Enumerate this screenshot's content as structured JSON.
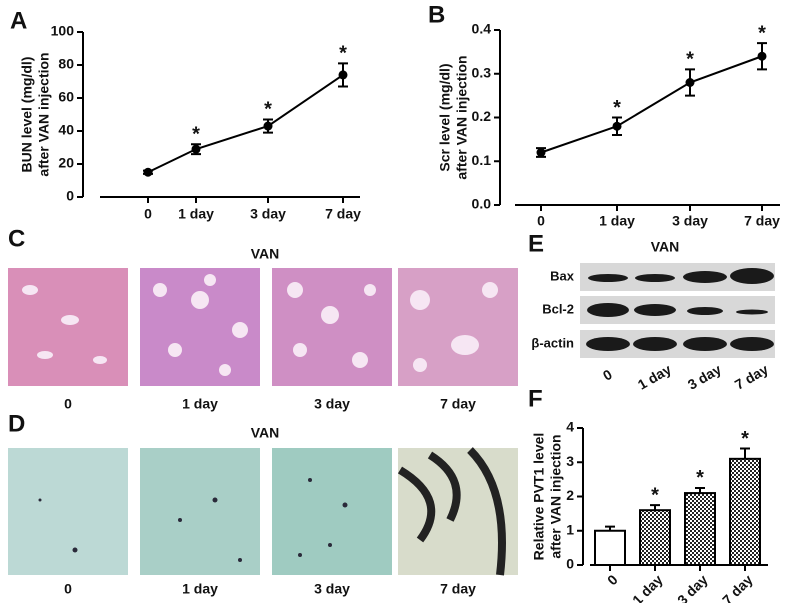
{
  "chart_data": [
    {
      "type": "line",
      "panel": "A",
      "ylabel": [
        "BUN level (mg/dl)",
        "after VAN injection"
      ],
      "categories": [
        "0",
        "1 day",
        "3 day",
        "7 day"
      ],
      "values": [
        15,
        29,
        43,
        74
      ],
      "error": [
        1,
        3,
        4,
        7
      ],
      "significance": [
        null,
        "*",
        "*",
        "*"
      ],
      "color": "#000000",
      "ylim": [
        0,
        100
      ],
      "yticks": [
        0,
        20,
        40,
        60,
        80,
        100
      ]
    },
    {
      "type": "line",
      "panel": "B",
      "ylabel": [
        "Scr level (mg/dl)",
        "after VAN injection"
      ],
      "categories": [
        "0",
        "1 day",
        "3 day",
        "7 day"
      ],
      "values": [
        0.12,
        0.18,
        0.28,
        0.34
      ],
      "error": [
        0.01,
        0.02,
        0.03,
        0.03
      ],
      "significance": [
        null,
        "*",
        "*",
        "*"
      ],
      "color": "#000000",
      "ylim": [
        0,
        0.4
      ],
      "yticks": [
        {
          "value": 0,
          "label": "0.0"
        },
        0.1,
        0.2,
        0.3,
        0.4
      ]
    },
    {
      "type": "bar",
      "panel": "F",
      "ylabel": [
        "Relative PVT1 level",
        "after VAN injection"
      ],
      "categories": [
        "0",
        "1 day",
        "3 day",
        "7 day"
      ],
      "values": [
        1.0,
        1.6,
        2.1,
        3.1
      ],
      "error": [
        0.12,
        0.15,
        0.15,
        0.3
      ],
      "significance": [
        null,
        "*",
        "*",
        "*"
      ],
      "color": "#000000",
      "bar_fills": [
        "white",
        "checkered",
        "checkered",
        "checkered"
      ],
      "ylim": [
        0,
        4
      ],
      "yticks": [
        0,
        1,
        2,
        3,
        4
      ]
    }
  ],
  "panel_c": {
    "label": "C",
    "title": "VAN",
    "lanes": [
      "0",
      "1 day",
      "3 day",
      "7 day"
    ]
  },
  "panel_d": {
    "label": "D",
    "title": "VAN",
    "lanes": [
      "0",
      "1 day",
      "3 day",
      "7 day"
    ]
  },
  "panel_e": {
    "label": "E",
    "title": "VAN",
    "rows": [
      "Bax",
      "Bcl-2",
      "β-actin"
    ],
    "lanes": [
      "0",
      "1 day",
      "3 day",
      "7 day"
    ]
  }
}
